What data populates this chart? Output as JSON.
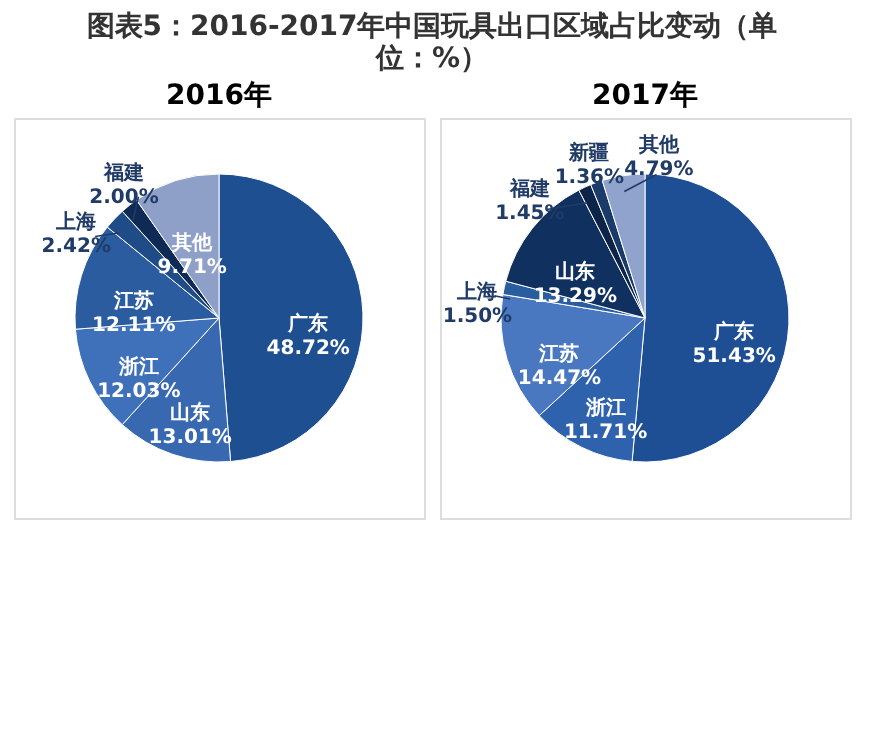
{
  "chart_data": [
    {
      "type": "pie",
      "title": "图表5：2016-2017年中国玩具出口区域占比变动（单位：%）",
      "subtitle": "2016年",
      "categories": [
        "广东",
        "山东",
        "浙江",
        "江苏",
        "上海",
        "福建",
        "其他"
      ],
      "values": [
        48.72,
        13.01,
        12.03,
        12.11,
        2.42,
        2.0,
        9.71
      ],
      "value_labels": [
        "48.72%",
        "13.01%",
        "12.03%",
        "12.11%",
        "2.42%",
        "2.00%",
        "9.71%"
      ],
      "colors": [
        "#1d4f91",
        "#3869b0",
        "#3e71b9",
        "#2b5c9f",
        "#1f4b86",
        "#0e2a55",
        "#8e9fc8"
      ]
    },
    {
      "type": "pie",
      "subtitle": "2017年",
      "categories": [
        "广东",
        "浙江",
        "江苏",
        "上海",
        "山东",
        "福建",
        "新疆",
        "其他"
      ],
      "values": [
        51.43,
        11.71,
        14.47,
        1.5,
        13.29,
        1.45,
        1.36,
        4.79
      ],
      "value_labels": [
        "51.43%",
        "11.71%",
        "14.47%",
        "1.50%",
        "13.29%",
        "1.45%",
        "1.36%",
        "4.79%"
      ],
      "colors": [
        "#1e4f95",
        "#2e62ad",
        "#4a78c0",
        "#2a5d9e",
        "#10315f",
        "#0c2448",
        "#1a3a6a",
        "#8fa3cc"
      ]
    }
  ]
}
